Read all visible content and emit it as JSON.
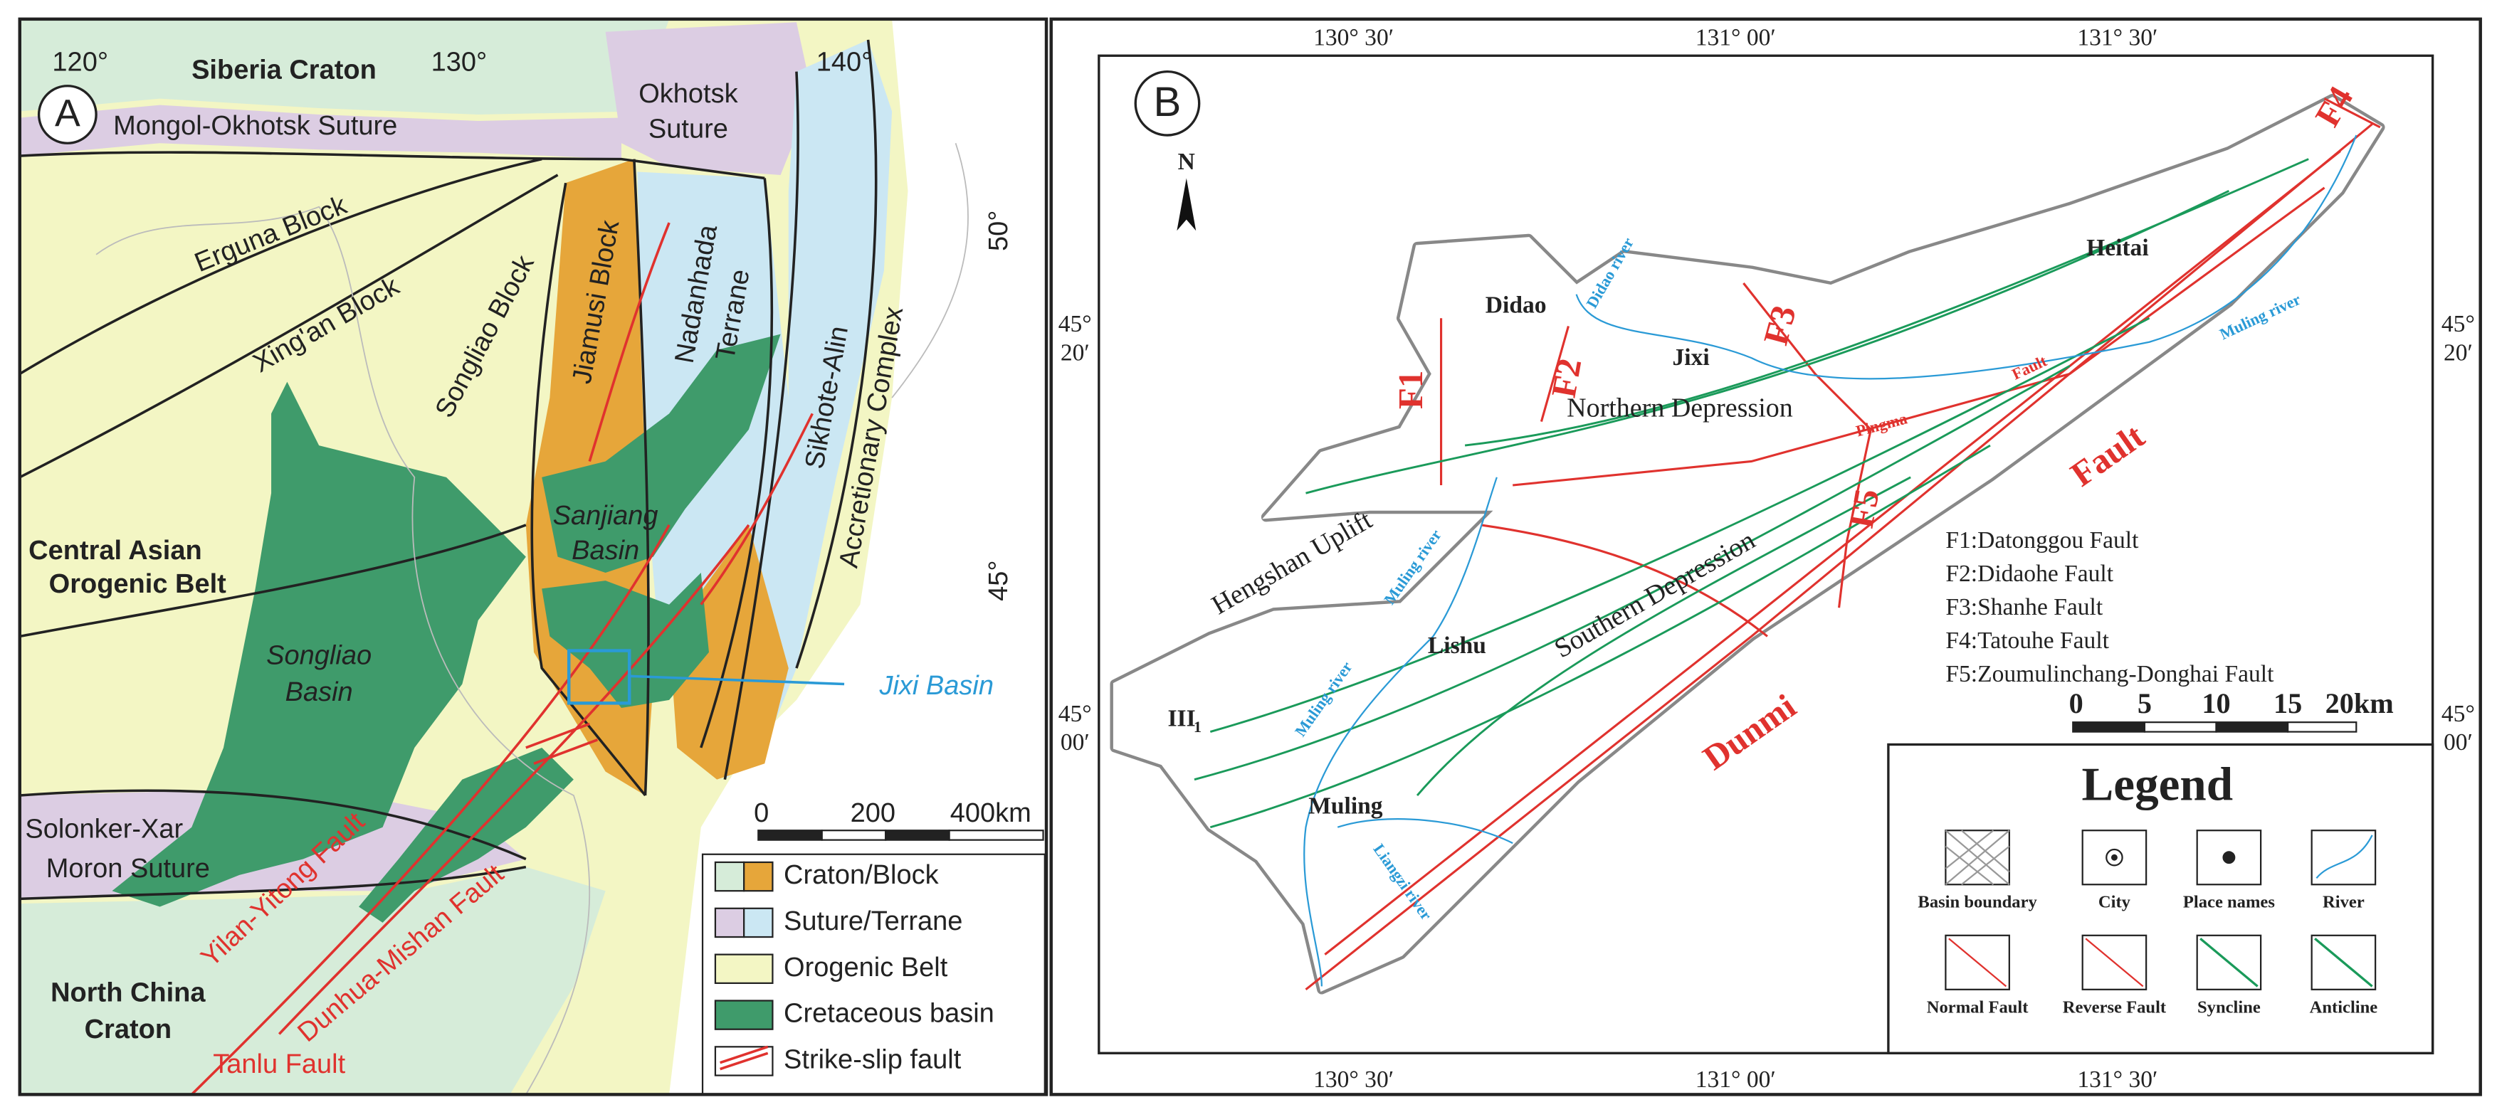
{
  "panel_a": {
    "label": "A",
    "longitudes": [
      "120°",
      "130°",
      "140°"
    ],
    "latitudes": [
      "50°",
      "45°"
    ],
    "regions": [
      "Siberia Craton",
      "Mongol-Okhotsk Suture",
      "Okhotsk",
      "Suture",
      "Erguna Block",
      "Xing'an Block",
      "Songliao Block",
      "Jiamusi Block",
      "Nadanhada",
      "Terrane",
      "Sikhote-Alin",
      "Accretionary Complex",
      "Central Asian",
      "Orogenic Belt",
      "Solonker-Xar",
      "Moron Suture",
      "North China",
      "Craton"
    ],
    "basins": [
      "Sanjiang",
      "Basin",
      "Songliao",
      "Basin"
    ],
    "faults": [
      "Yilan-Yitong Fault",
      "Dunhua-Mishan Fault",
      "Tanlu Fault"
    ],
    "callout": "Jixi Basin",
    "scale": [
      "0",
      "200",
      "400km"
    ],
    "legend": [
      "Craton/Block",
      "Suture/Terrane",
      "Orogenic Belt",
      "Cretaceous basin",
      "Strike-slip fault"
    ]
  },
  "panel_b": {
    "label": "B",
    "north": "N",
    "top_coords": [
      "130° 30′",
      "131° 00′",
      "131° 30′"
    ],
    "bottom_coords": [
      "130° 30′",
      "131° 00′",
      "131° 30′"
    ],
    "left_coords": [
      [
        "45°",
        "20′"
      ],
      [
        "45°",
        "00′"
      ]
    ],
    "right_coords": [
      [
        "45°",
        "20′"
      ],
      [
        "45°",
        "00′"
      ]
    ],
    "places": [
      "Didao",
      "Jixi",
      "Heitai",
      "Lishu",
      "Muling"
    ],
    "units": [
      "Northern Depression",
      "Southern Depression",
      "Hengshan Uplift"
    ],
    "unit_code": {
      "text": "III",
      "sub": "1"
    },
    "fault_labels": [
      "F1",
      "F2",
      "F3",
      "F4",
      "F5",
      "Pingma",
      "Fault",
      "Dunmi",
      "Fault"
    ],
    "rivers": [
      "Didao river",
      "Muling river",
      "Muling river",
      "Muling river",
      "Liangzi river"
    ],
    "fault_list": [
      "F1:Datonggou Fault",
      "F2:Didaohe Fault",
      "F3:Shanhe Fault",
      "F4:Tatouhe Fault",
      "F5:Zoumulinchang-Donghai Fault"
    ],
    "scale": [
      "0",
      "5",
      "10",
      "15",
      "20km"
    ],
    "legend_title": "Legend",
    "legend": [
      "Basin boundary",
      "City",
      "Place names",
      "River",
      "Normal Fault",
      "Reverse Fault",
      "Syncline",
      "Anticline"
    ]
  }
}
